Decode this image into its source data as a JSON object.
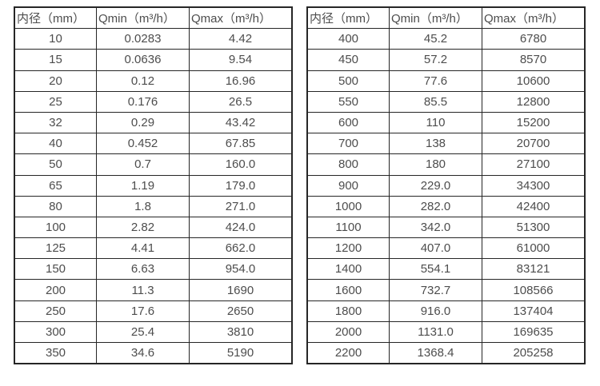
{
  "tables": [
    {
      "name": "flow-table-small-diameters",
      "headers": [
        "内径（mm）",
        "Qmin（m³/h）",
        "Qmax（m³/h）"
      ],
      "rows": [
        [
          "10",
          "0.0283",
          "4.42"
        ],
        [
          "15",
          "0.0636",
          "9.54"
        ],
        [
          "20",
          "0.12",
          "16.96"
        ],
        [
          "25",
          "0.176",
          "26.5"
        ],
        [
          "32",
          "0.29",
          "43.42"
        ],
        [
          "40",
          "0.452",
          "67.85"
        ],
        [
          "50",
          "0.7",
          "160.0"
        ],
        [
          "65",
          "1.19",
          "179.0"
        ],
        [
          "80",
          "1.8",
          "271.0"
        ],
        [
          "100",
          "2.82",
          "424.0"
        ],
        [
          "125",
          "4.41",
          "662.0"
        ],
        [
          "150",
          "6.63",
          "954.0"
        ],
        [
          "200",
          "11.3",
          "1690"
        ],
        [
          "250",
          "17.6",
          "2650"
        ],
        [
          "300",
          "25.4",
          "3810"
        ],
        [
          "350",
          "34.6",
          "5190"
        ]
      ]
    },
    {
      "name": "flow-table-large-diameters",
      "headers": [
        "内径（mm）",
        "Qmin（m³/h）",
        "Qmax（m³/h）"
      ],
      "rows": [
        [
          "400",
          "45.2",
          "6780"
        ],
        [
          "450",
          "57.2",
          "8570"
        ],
        [
          "500",
          "77.6",
          "10600"
        ],
        [
          "550",
          "85.5",
          "12800"
        ],
        [
          "600",
          "110",
          "15200"
        ],
        [
          "700",
          "138",
          "20700"
        ],
        [
          "800",
          "180",
          "27100"
        ],
        [
          "900",
          "229.0",
          "34300"
        ],
        [
          "1000",
          "282.0",
          "42400"
        ],
        [
          "1100",
          "342.0",
          "51300"
        ],
        [
          "1200",
          "407.0",
          "61000"
        ],
        [
          "1400",
          "554.1",
          "83121"
        ],
        [
          "1600",
          "732.7",
          "108566"
        ],
        [
          "1800",
          "916.0",
          "137404"
        ],
        [
          "2000",
          "1131.0",
          "169635"
        ],
        [
          "2200",
          "1368.4",
          "205258"
        ]
      ]
    }
  ],
  "colors": {
    "border": "#262626",
    "text": "#4d4d4d",
    "background": "#ffffff"
  }
}
